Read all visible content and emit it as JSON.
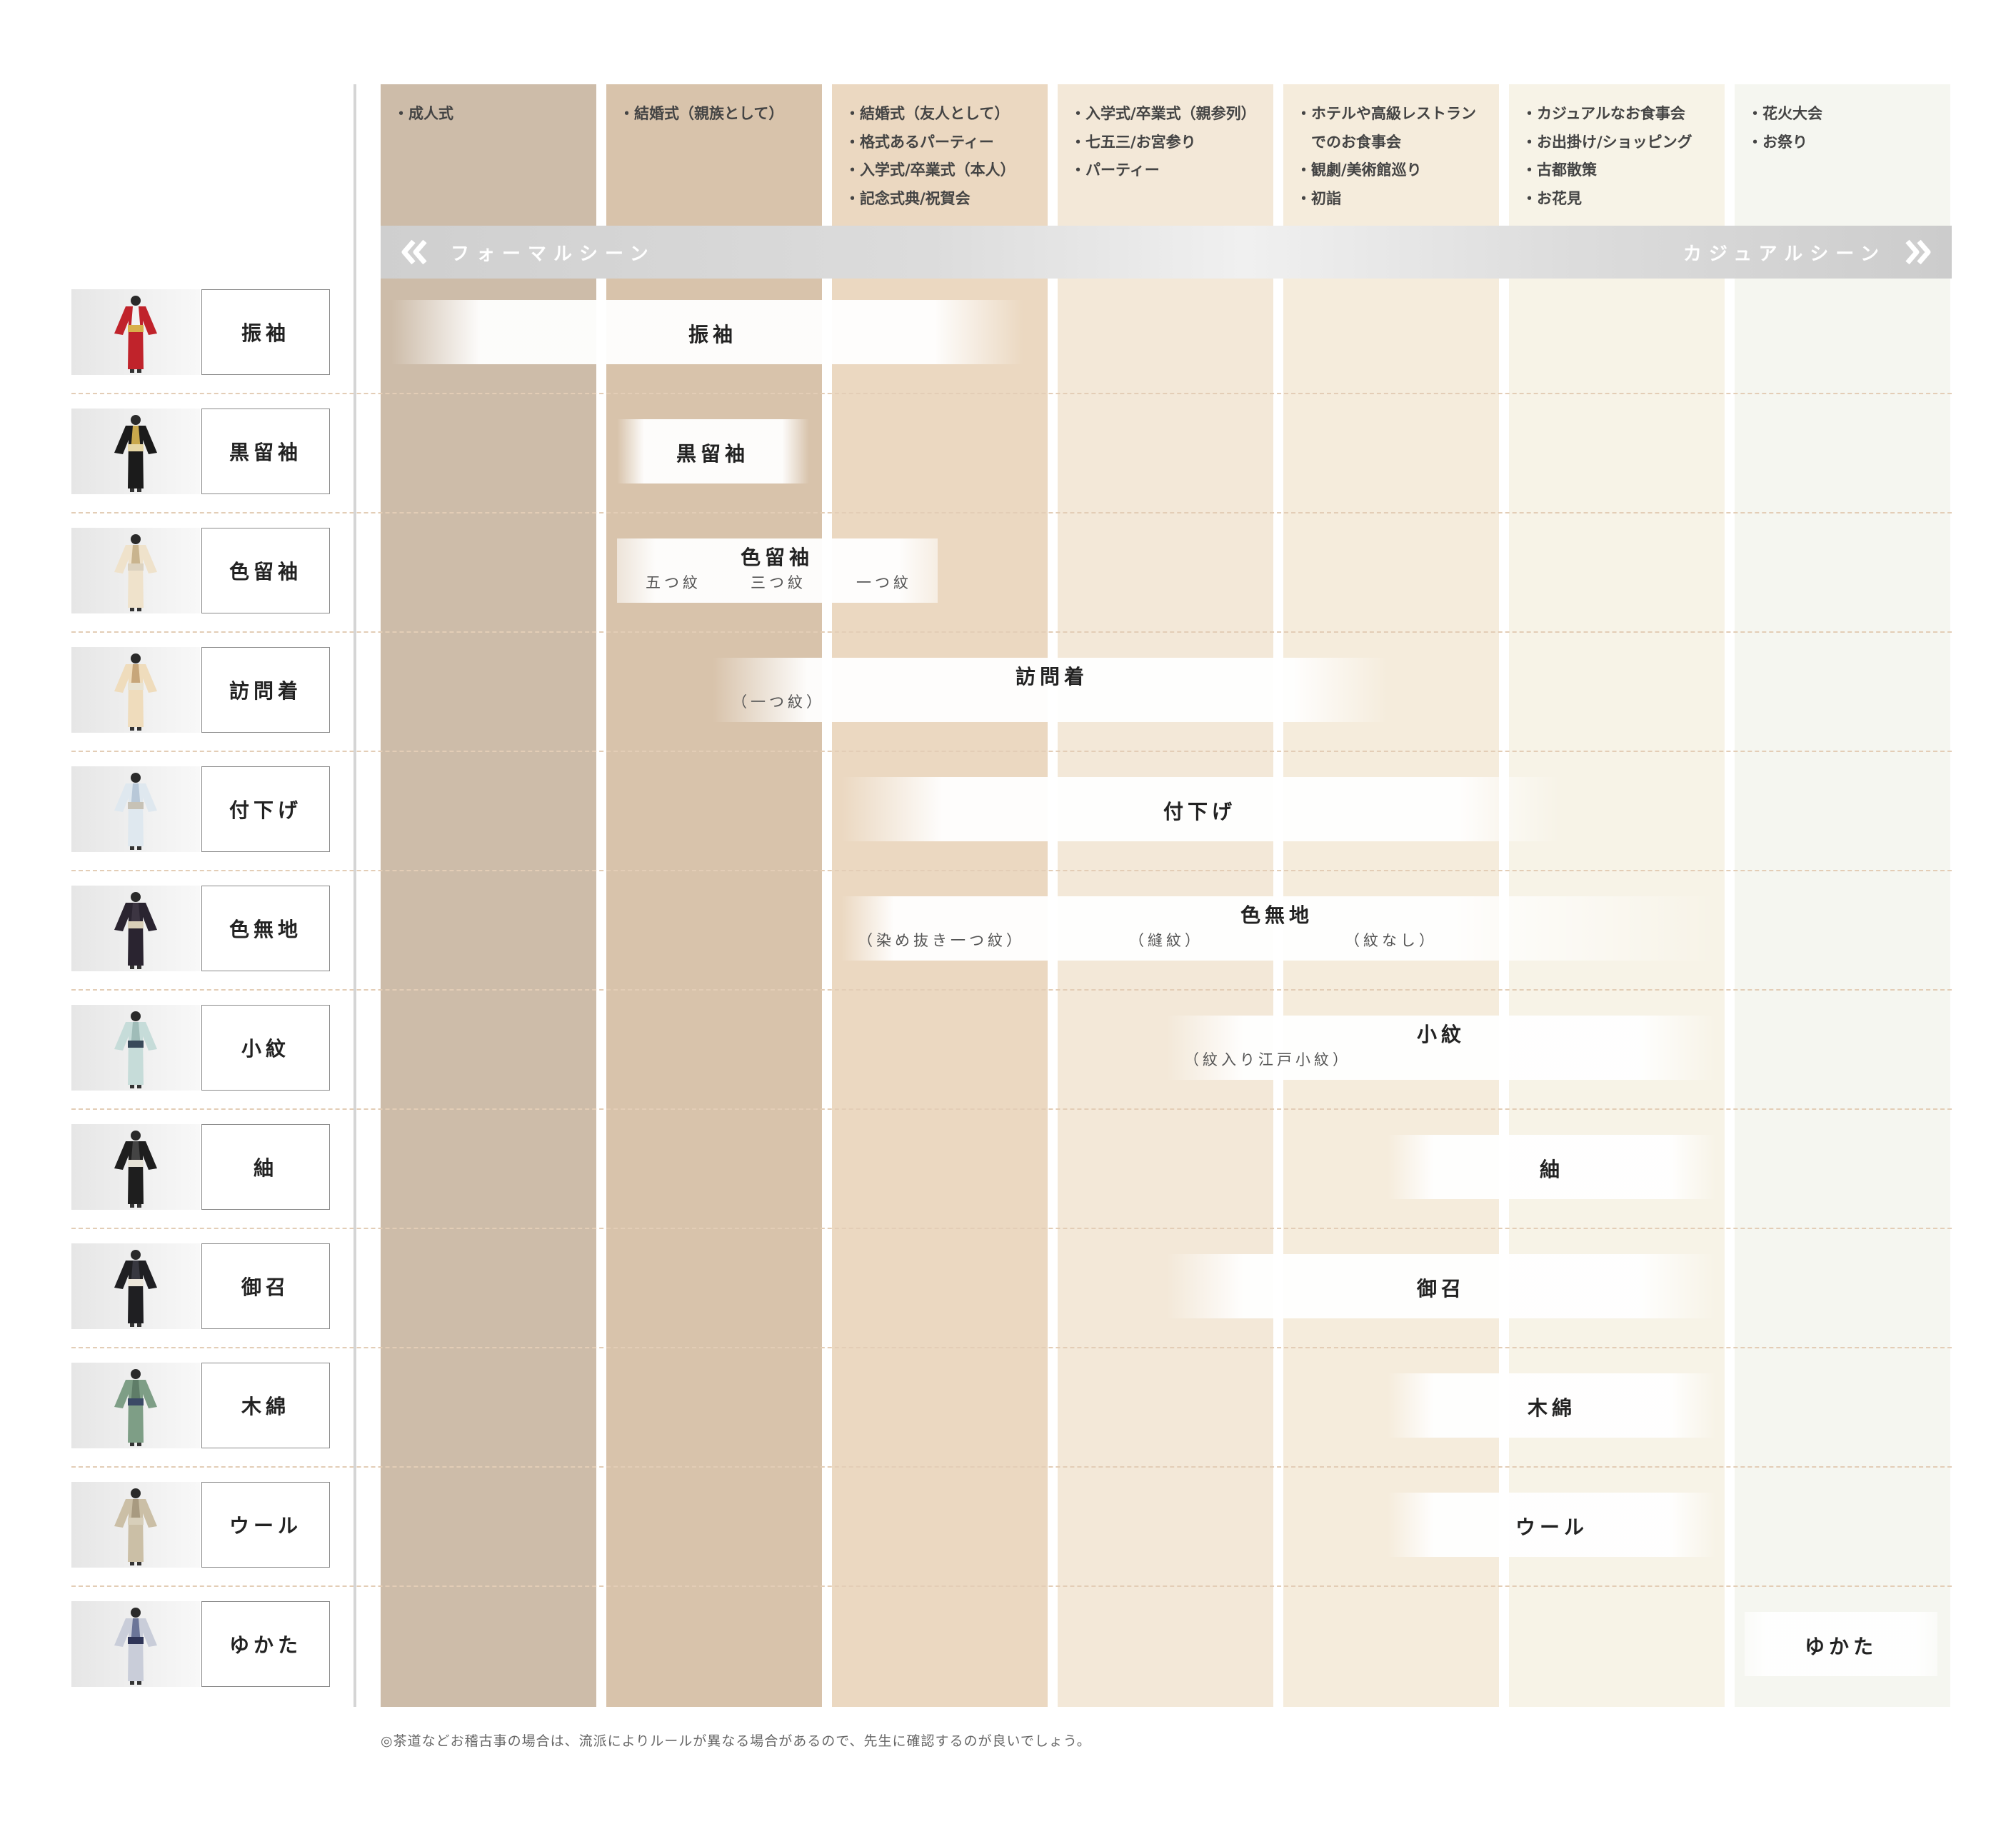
{
  "columns": [
    {
      "color": "#cdbca9",
      "scenes": [
        "・成人式"
      ]
    },
    {
      "color": "#d8c3ab",
      "scenes": [
        "・結婚式（親族として）"
      ]
    },
    {
      "color": "#ebd8c1",
      "scenes": [
        "・結婚式（友人として）",
        "・格式あるパーティー",
        "・入学式/卒業式（本人）",
        "・記念式典/祝賀会"
      ]
    },
    {
      "color": "#f3e8d8",
      "scenes": [
        "・入学式/卒業式（親参列）",
        "・七五三/お宮参り",
        "・パーティー"
      ]
    },
    {
      "color": "#f5ecdc",
      "scenes": [
        "・ホテルや高級レストラン",
        "　でのお食事会",
        "・観劇/美術館巡り",
        "・初詣"
      ]
    },
    {
      "color": "#f7f3e7",
      "scenes": [
        "・カジュアルなお食事会",
        "・お出掛け/ショッピング",
        "・古都散策",
        "・お花見"
      ]
    },
    {
      "color": "#f5f6f0",
      "scenes": [
        "・花火大会",
        "・お祭り"
      ]
    }
  ],
  "banner": {
    "left_label": "フォーマルシーン",
    "right_label": "カジュアルシーン"
  },
  "kimono_rows": [
    {
      "name": "振袖",
      "bar_label": "振袖",
      "sub_labels": [],
      "thumb": {
        "body": "#c0232b",
        "accent": "#f2f2f2",
        "obi": "#d8b04a"
      }
    },
    {
      "name": "黒留袖",
      "bar_label": "黒留袖",
      "sub_labels": [],
      "thumb": {
        "body": "#1b1b1b",
        "accent": "#c9a84c",
        "obi": "#e6d6a4"
      }
    },
    {
      "name": "色留袖",
      "bar_label": "色留袖",
      "sub_labels": [
        "五つ紋",
        "三つ紋",
        "一つ紋"
      ],
      "thumb": {
        "body": "#efe2cb",
        "accent": "#c9b48e",
        "obi": "#dcd2bf"
      }
    },
    {
      "name": "訪問着",
      "bar_label": "訪問着",
      "sub_labels": [
        "（一つ紋）"
      ],
      "thumb": {
        "body": "#efdcbc",
        "accent": "#c7a67a",
        "obi": "#e9e3d2"
      }
    },
    {
      "name": "付下げ",
      "bar_label": "付下げ",
      "sub_labels": [],
      "thumb": {
        "body": "#dfe8ef",
        "accent": "#b8c8d8",
        "obi": "#c7c2b6"
      }
    },
    {
      "name": "色無地",
      "bar_label": "色無地",
      "sub_labels": [
        "（染め抜き一つ紋）",
        "（縫紋）",
        "（紋なし）"
      ],
      "thumb": {
        "body": "#2a2430",
        "accent": "#3c3542",
        "obi": "#d9cfb8"
      }
    },
    {
      "name": "小紋",
      "bar_label": "小紋",
      "sub_labels": [
        "（紋入り江戸小紋）"
      ],
      "thumb": {
        "body": "#c6dcd9",
        "accent": "#9fbcb8",
        "obi": "#394a5a"
      }
    },
    {
      "name": "紬",
      "bar_label": "紬",
      "sub_labels": [],
      "thumb": {
        "body": "#1e1e1e",
        "accent": "#444444",
        "obi": "#e6e2d6"
      }
    },
    {
      "name": "御召",
      "bar_label": "御召",
      "sub_labels": [],
      "thumb": {
        "body": "#1f1f22",
        "accent": "#383840",
        "obi": "#ece6da"
      }
    },
    {
      "name": "木綿",
      "bar_label": "木綿",
      "sub_labels": [],
      "thumb": {
        "body": "#7e9e86",
        "accent": "#5f7d68",
        "obi": "#3b4a66"
      }
    },
    {
      "name": "ウール",
      "bar_label": "ウール",
      "sub_labels": [],
      "thumb": {
        "body": "#cbbfa6",
        "accent": "#a89a80",
        "obi": "#d8cfba"
      }
    },
    {
      "name": "ゆかた",
      "bar_label": "ゆかた",
      "sub_labels": [],
      "thumb": {
        "body": "#c9cdd9",
        "accent": "#6b7598",
        "obi": "#2f3558"
      }
    }
  ],
  "footnote": "◎茶道などお稽古事の場合は、流派によりルールが異なる場合があるので、先生に確認するのが良いでしょう。"
}
